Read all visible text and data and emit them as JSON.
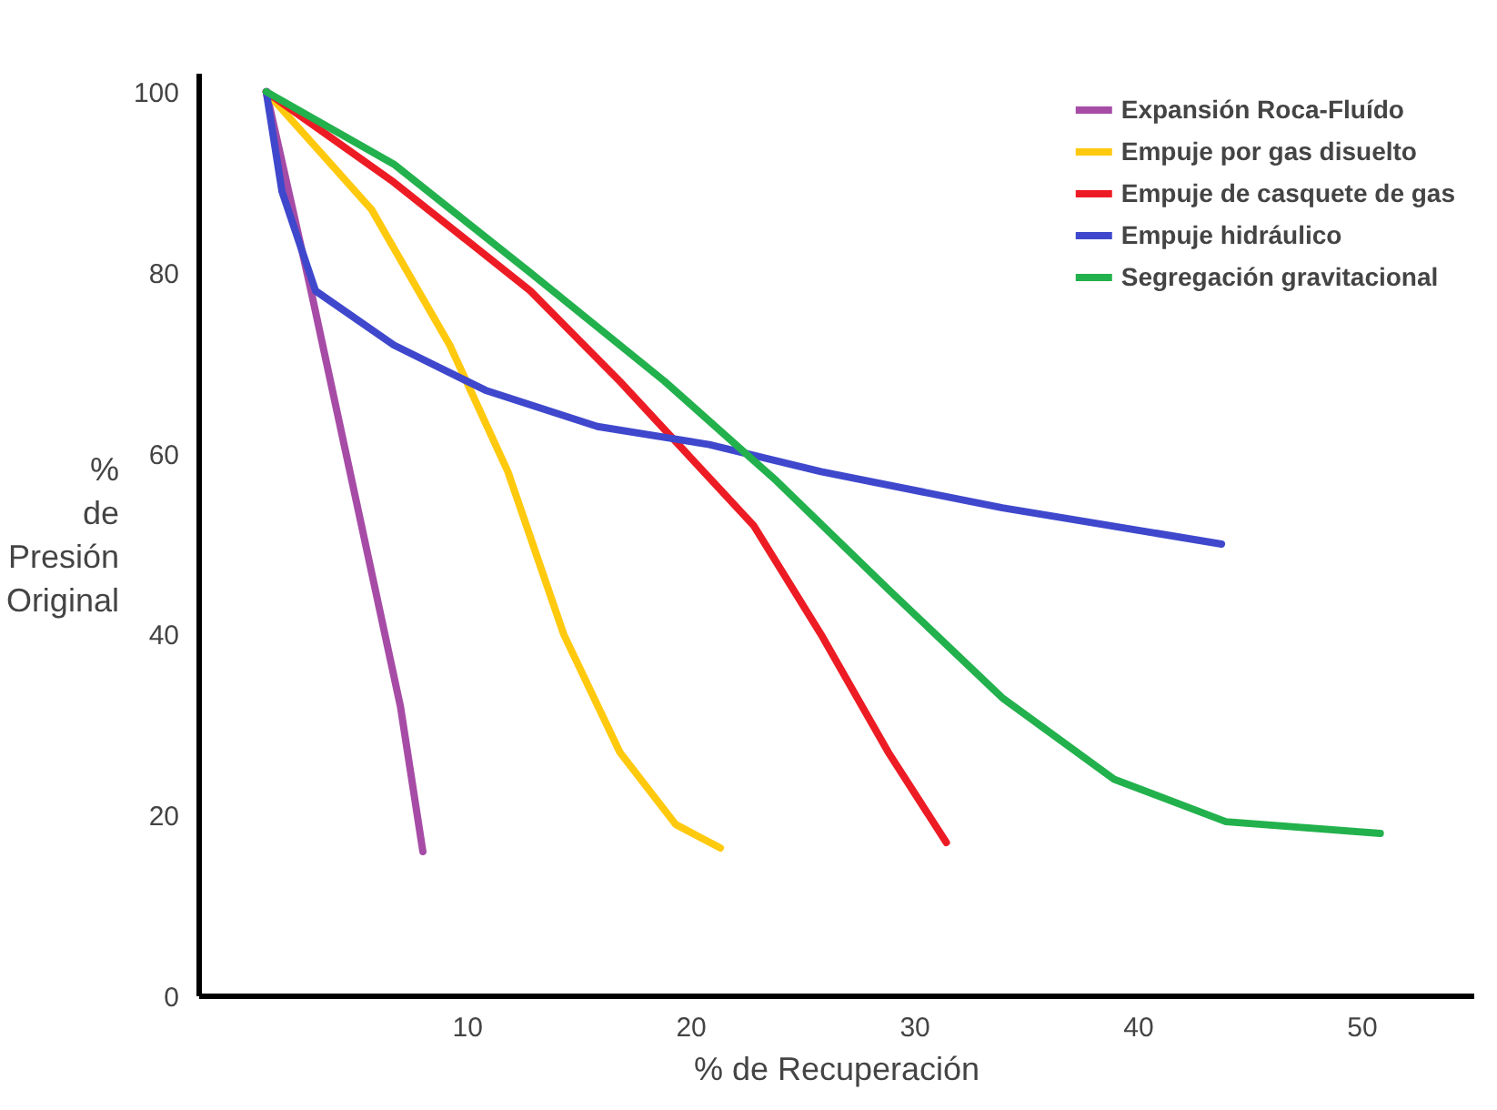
{
  "chart_data": {
    "type": "line",
    "xlabel": "% de Recuperación",
    "ylabel": "% de Presión Original",
    "xlim": [
      -2,
      55
    ],
    "ylim": [
      0,
      102
    ],
    "xticks": [
      10,
      20,
      30,
      40,
      50
    ],
    "yticks": [
      0,
      20,
      40,
      60,
      80,
      100
    ],
    "grid": false,
    "legend": "top right",
    "series": [
      {
        "name": "Expansión Roca-Fluído",
        "color": "#a64ca6",
        "x": [
          1,
          3,
          5,
          7,
          8
        ],
        "values": [
          100,
          78,
          55,
          32,
          16
        ]
      },
      {
        "name": "Empuje por gas disuelto",
        "color": "#ffc90e",
        "x": [
          1,
          5.7,
          9.2,
          11.8,
          14.3,
          16.8,
          19.3,
          21.3
        ],
        "values": [
          100,
          87,
          72,
          58,
          40,
          27,
          19,
          16.4
        ]
      },
      {
        "name": "Empuje de casquete de gas",
        "color": "#ed1c24",
        "x": [
          1,
          6.7,
          12.8,
          16.8,
          19.8,
          22.8,
          25.8,
          28.8,
          31.4
        ],
        "values": [
          100,
          90,
          78,
          68,
          60,
          52,
          40,
          27,
          17
        ]
      },
      {
        "name": "Empuje hidráulico",
        "color": "#3f48cc",
        "x": [
          1,
          1.7,
          3.2,
          6.7,
          10.8,
          15.8,
          20.8,
          25.8,
          33.9,
          43.7
        ],
        "values": [
          100,
          89,
          78,
          72,
          67,
          63,
          61,
          58,
          54,
          50
        ]
      },
      {
        "name": "Segregación gravitacional",
        "color": "#22b14c",
        "x": [
          1,
          6.7,
          12.8,
          18.8,
          23.8,
          28.8,
          33.9,
          38.9,
          43.9,
          50.8
        ],
        "values": [
          100,
          92,
          80,
          68,
          57,
          45,
          33,
          24,
          19.3,
          18
        ]
      }
    ]
  }
}
